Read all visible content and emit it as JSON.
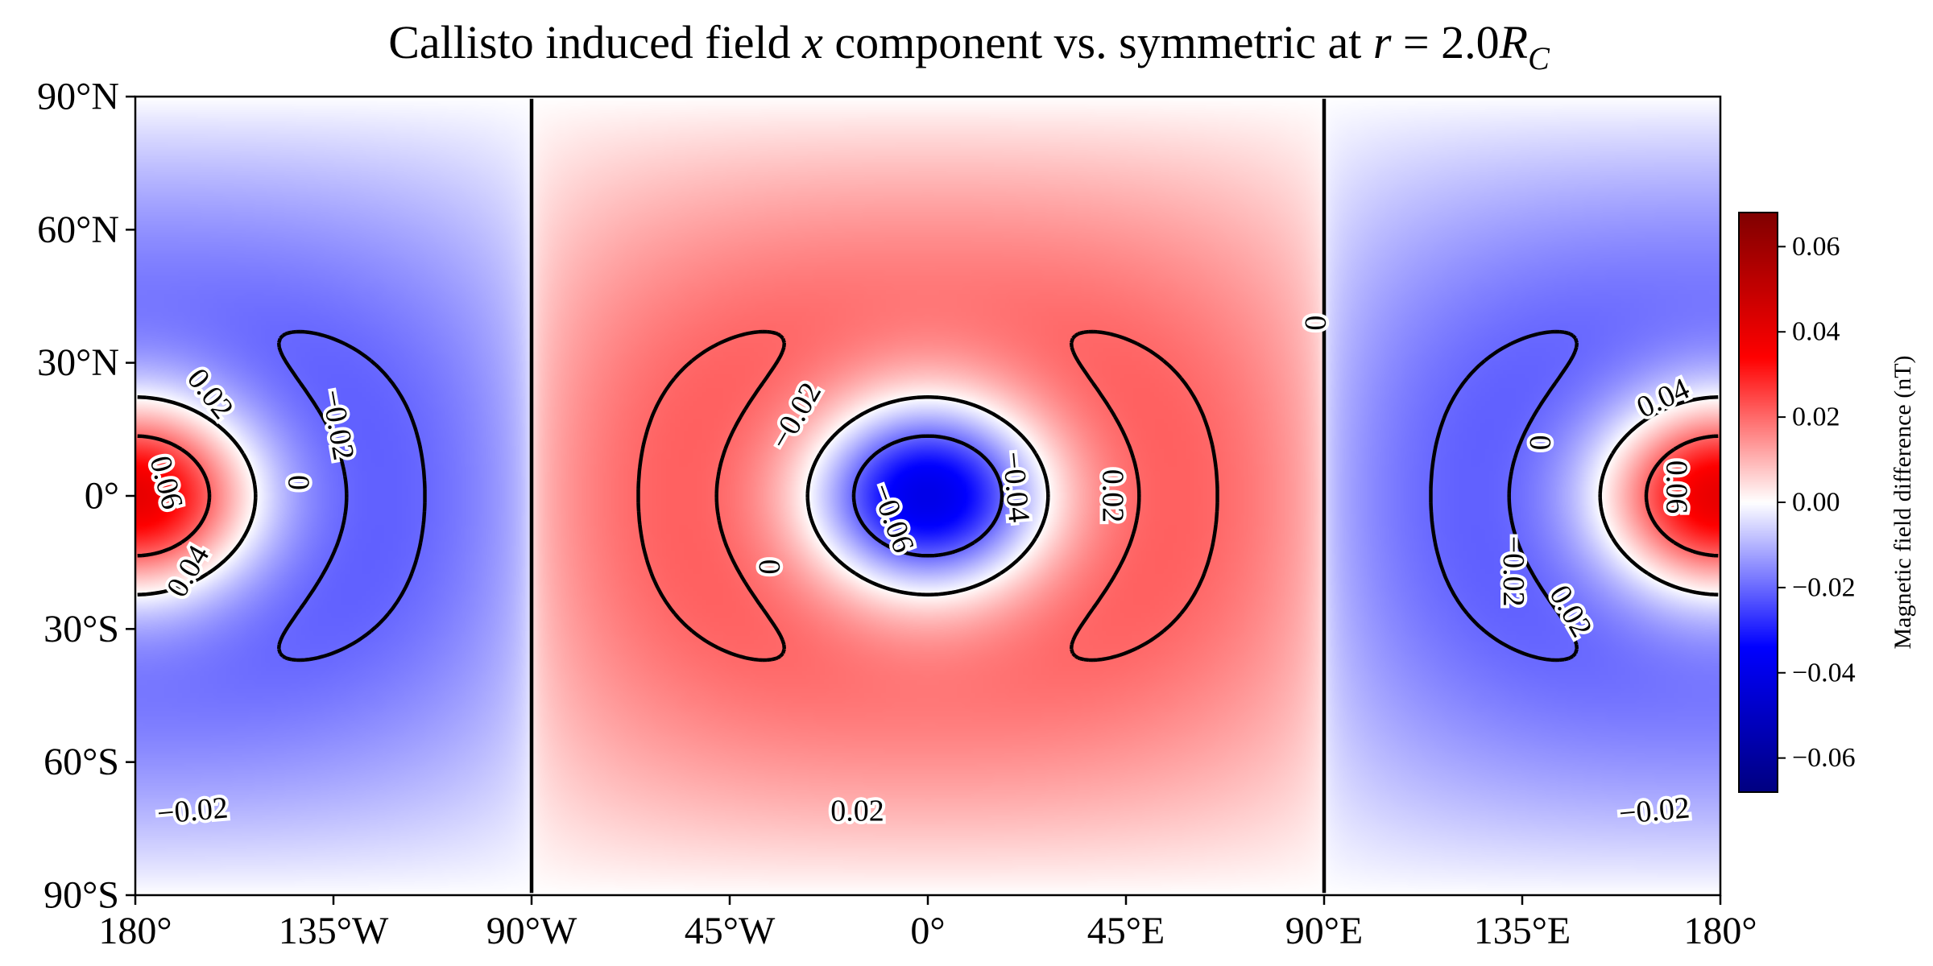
{
  "chart_data": {
    "type": "heatmap",
    "title_parts": {
      "prefix": "Callisto induced field ",
      "var": "x",
      "middle": " component vs. symmetric at ",
      "rvar": "r",
      "eq": " = 2.0",
      "R": "R",
      "sub": "C"
    },
    "x_ticks": [
      {
        "lon": -180,
        "label": "180°"
      },
      {
        "lon": -135,
        "label": "135°W"
      },
      {
        "lon": -90,
        "label": "90°W"
      },
      {
        "lon": -45,
        "label": "45°W"
      },
      {
        "lon": 0,
        "label": "0°"
      },
      {
        "lon": 45,
        "label": "45°E"
      },
      {
        "lon": 90,
        "label": "90°E"
      },
      {
        "lon": 135,
        "label": "135°E"
      },
      {
        "lon": 180,
        "label": "180°"
      }
    ],
    "y_ticks": [
      {
        "lat": 90,
        "label": "90°N"
      },
      {
        "lat": 60,
        "label": "60°N"
      },
      {
        "lat": 30,
        "label": "30°N"
      },
      {
        "lat": 0,
        "label": "0°"
      },
      {
        "lat": -30,
        "label": "30°S"
      },
      {
        "lat": -60,
        "label": "60°S"
      },
      {
        "lat": -90,
        "label": "90°S"
      }
    ],
    "xlim": [
      -180,
      180
    ],
    "ylim": [
      -90,
      90
    ],
    "colormap": "seismic",
    "color_range": [
      -0.068,
      0.068
    ],
    "colorbar": {
      "label": "Magnetic field difference (nT)",
      "ticks": [
        {
          "value": 0.06,
          "label": "0.06"
        },
        {
          "value": 0.04,
          "label": "0.04"
        },
        {
          "value": 0.02,
          "label": "0.02"
        },
        {
          "value": 0.0,
          "label": "0.00"
        },
        {
          "value": -0.02,
          "label": "−0.02"
        },
        {
          "value": -0.04,
          "label": "−0.04"
        },
        {
          "value": -0.06,
          "label": "−0.06"
        }
      ]
    },
    "field_model": "approximately -0.068 nT at (0°, 0°) and +0.068 nT at (180°, 0°), near zero along ±90° longitude",
    "contour_levels": [
      -0.06,
      -0.04,
      -0.02,
      0,
      0.02,
      0.04,
      0.06
    ],
    "contour_labels": [
      {
        "text": "0.02",
        "lon": -163,
        "lat": 23,
        "rot": 52
      },
      {
        "text": "0.06",
        "lon": -173,
        "lat": 3,
        "rot": 75
      },
      {
        "text": "0.04",
        "lon": -168,
        "lat": -17,
        "rot": -60
      },
      {
        "text": "0",
        "lon": -143,
        "lat": 3,
        "rot": 90
      },
      {
        "text": "−0.02",
        "lon": -134,
        "lat": 16,
        "rot": 80
      },
      {
        "text": "−0.02",
        "lon": -167,
        "lat": -71,
        "rot": -5
      },
      {
        "text": "−0.02",
        "lon": -30,
        "lat": 18,
        "rot": -60
      },
      {
        "text": "0",
        "lon": -36,
        "lat": -16,
        "rot": 90
      },
      {
        "text": "−0.06",
        "lon": -8,
        "lat": -5,
        "rot": 70
      },
      {
        "text": "−0.04",
        "lon": 20,
        "lat": 2,
        "rot": 85
      },
      {
        "text": "0.02",
        "lon": 42,
        "lat": 0,
        "rot": 90
      },
      {
        "text": "0.02",
        "lon": -16,
        "lat": -71,
        "rot": 0
      },
      {
        "text": "0",
        "lon": 88,
        "lat": 39,
        "rot": 90
      },
      {
        "text": "0.04",
        "lon": 167,
        "lat": 22,
        "rot": -25
      },
      {
        "text": "0.06",
        "lon": 170,
        "lat": 2,
        "rot": 90
      },
      {
        "text": "0",
        "lon": 139,
        "lat": 12,
        "rot": 90
      },
      {
        "text": "−0.02",
        "lon": 133,
        "lat": -17,
        "rot": 90
      },
      {
        "text": "0.02",
        "lon": 146,
        "lat": -26,
        "rot": 60
      },
      {
        "text": "−0.02",
        "lon": 165,
        "lat": -71,
        "rot": -5
      }
    ]
  }
}
